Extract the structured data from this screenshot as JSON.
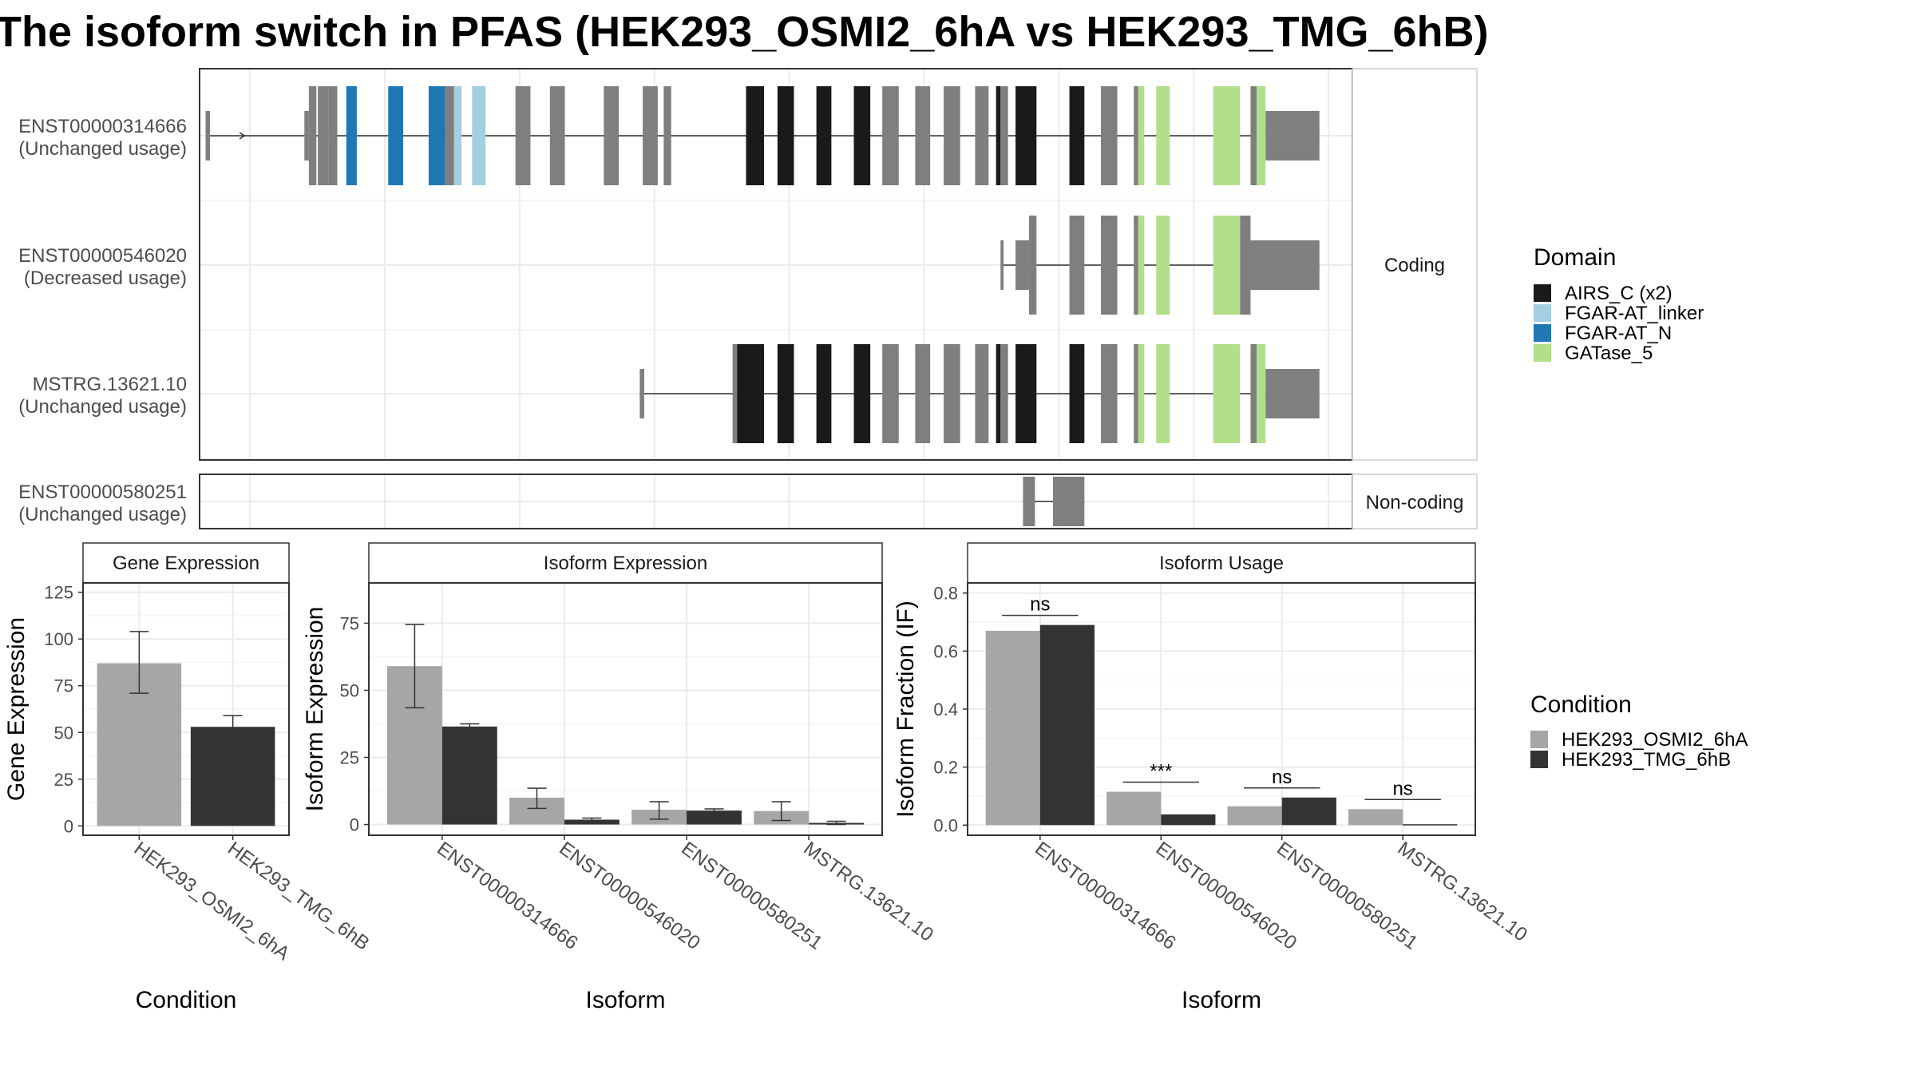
{
  "title": "The isoform switch in PFAS (HEK293_OSMI2_6hA vs HEK293_TMG_6hB)",
  "colors": {
    "cond_a": "#a6a6a6",
    "cond_b": "#333333",
    "exon_default": "#7f7f7f",
    "domain_airs": "#1a1a1a",
    "domain_linker": "#a6cee3",
    "domain_fgar_n": "#1f78b4",
    "domain_gatase": "#b2df8a"
  },
  "chart_data": [
    {
      "type": "gene-structure",
      "facets": [
        "Coding",
        "Non-coding"
      ],
      "transcripts": [
        {
          "id": "ENST00000314666",
          "label_line2": "(Unchanged usage)",
          "facet": "Coding",
          "exons": [
            [
              4,
              7
            ],
            [
              70,
              73
            ],
            [
              73,
              78
            ],
            [
              79,
              86
            ],
            [
              86,
              92
            ],
            [
              98,
              105
            ],
            [
              126,
              136
            ],
            [
              153,
              164
            ],
            [
              164,
              170
            ],
            [
              170,
              175
            ],
            [
              182,
              191
            ],
            [
              211,
              221
            ],
            [
              234,
              244
            ],
            [
              270,
              280
            ],
            [
              296,
              306
            ],
            [
              310,
              315
            ],
            [
              365,
              377
            ],
            [
              386,
              397
            ],
            [
              412,
              422
            ],
            [
              437,
              448
            ],
            [
              456,
              467
            ],
            [
              478,
              488
            ],
            [
              497,
              508
            ],
            [
              518,
              527
            ],
            [
              532,
              535
            ],
            [
              535,
              540
            ],
            [
              545,
              559
            ],
            [
              581,
              591
            ],
            [
              602,
              613
            ],
            [
              624,
              627
            ],
            [
              627,
              631
            ],
            [
              639,
              648
            ],
            [
              677,
              695
            ],
            [
              702,
              706
            ],
            [
              706,
              712
            ],
            [
              712,
              748
            ]
          ],
          "domains": [
            {
              "name": "FGAR-AT_N",
              "range": [
                98,
                105
              ]
            },
            {
              "name": "FGAR-AT_N",
              "range": [
                126,
                136
              ]
            },
            {
              "name": "FGAR-AT_N",
              "range": [
                153,
                164
              ]
            },
            {
              "name": "FGAR-AT_linker",
              "range": [
                170,
                175
              ]
            },
            {
              "name": "FGAR-AT_linker",
              "range": [
                182,
                191
              ]
            },
            {
              "name": "AIRS_C (x2)",
              "range": [
                365,
                377
              ]
            },
            {
              "name": "AIRS_C (x2)",
              "range": [
                386,
                397
              ]
            },
            {
              "name": "AIRS_C (x2)",
              "range": [
                412,
                422
              ]
            },
            {
              "name": "AIRS_C (x2)",
              "range": [
                437,
                448
              ]
            },
            {
              "name": "AIRS_C (x2)",
              "range": [
                532,
                535
              ]
            },
            {
              "name": "AIRS_C (x2)",
              "range": [
                545,
                559
              ]
            },
            {
              "name": "AIRS_C (x2)",
              "range": [
                581,
                591
              ]
            },
            {
              "name": "GATase_5",
              "range": [
                627,
                631
              ]
            },
            {
              "name": "GATase_5",
              "range": [
                639,
                648
              ]
            },
            {
              "name": "GATase_5",
              "range": [
                677,
                695
              ]
            },
            {
              "name": "GATase_5",
              "range": [
                706,
                712
              ]
            }
          ]
        },
        {
          "id": "ENST00000546020",
          "label_line2": "(Decreased usage)",
          "facet": "Coding",
          "exons": [
            [
              535,
              537
            ],
            [
              545,
              554
            ],
            [
              554,
              559
            ],
            [
              581,
              591
            ],
            [
              602,
              613
            ],
            [
              624,
              627
            ],
            [
              627,
              631
            ],
            [
              639,
              648
            ],
            [
              677,
              695
            ],
            [
              695,
              702
            ],
            [
              702,
              748
            ]
          ],
          "domains": [
            {
              "name": "GATase_5",
              "range": [
                627,
                631
              ]
            },
            {
              "name": "GATase_5",
              "range": [
                639,
                648
              ]
            },
            {
              "name": "GATase_5",
              "range": [
                677,
                695
              ]
            }
          ]
        },
        {
          "id": "MSTRG.13621.10",
          "label_line2": "(Unchanged usage)",
          "facet": "Coding",
          "exons": [
            [
              294,
              297
            ],
            [
              356,
              359
            ],
            [
              359,
              365
            ],
            [
              365,
              377
            ],
            [
              386,
              397
            ],
            [
              412,
              422
            ],
            [
              437,
              448
            ],
            [
              456,
              467
            ],
            [
              478,
              488
            ],
            [
              497,
              508
            ],
            [
              518,
              527
            ],
            [
              532,
              535
            ],
            [
              535,
              540
            ],
            [
              545,
              559
            ],
            [
              581,
              591
            ],
            [
              602,
              613
            ],
            [
              624,
              627
            ],
            [
              627,
              631
            ],
            [
              639,
              648
            ],
            [
              677,
              695
            ],
            [
              702,
              706
            ],
            [
              706,
              712
            ],
            [
              712,
              748
            ]
          ],
          "domains": [
            {
              "name": "AIRS_C (x2)",
              "range": [
                359,
                365
              ]
            },
            {
              "name": "AIRS_C (x2)",
              "range": [
                365,
                377
              ]
            },
            {
              "name": "AIRS_C (x2)",
              "range": [
                386,
                397
              ]
            },
            {
              "name": "AIRS_C (x2)",
              "range": [
                412,
                422
              ]
            },
            {
              "name": "AIRS_C (x2)",
              "range": [
                437,
                448
              ]
            },
            {
              "name": "AIRS_C (x2)",
              "range": [
                532,
                535
              ]
            },
            {
              "name": "AIRS_C (x2)",
              "range": [
                545,
                559
              ]
            },
            {
              "name": "AIRS_C (x2)",
              "range": [
                581,
                591
              ]
            },
            {
              "name": "GATase_5",
              "range": [
                627,
                631
              ]
            },
            {
              "name": "GATase_5",
              "range": [
                639,
                648
              ]
            },
            {
              "name": "GATase_5",
              "range": [
                677,
                695
              ]
            },
            {
              "name": "GATase_5",
              "range": [
                706,
                712
              ]
            }
          ]
        },
        {
          "id": "ENST00000580251",
          "label_line2": "(Unchanged usage)",
          "facet": "Non-coding",
          "exons": [
            [
              550,
              558
            ],
            [
              570,
              591
            ]
          ],
          "domains": []
        }
      ],
      "domain_legend": {
        "title": "Domain",
        "entries": [
          "AIRS_C (x2)",
          "FGAR-AT_linker",
          "FGAR-AT_N",
          "GATase_5"
        ]
      }
    },
    {
      "type": "bar",
      "strip": "Gene Expression",
      "xlabel": "Condition",
      "ylabel": "Gene Expression",
      "categories": [
        "HEK293_OSMI2_6hA",
        "HEK293_TMG_6hB"
      ],
      "values": [
        87,
        53
      ],
      "error": [
        [
          71,
          104
        ],
        [
          48,
          59
        ]
      ],
      "yticks": [
        0,
        25,
        50,
        75,
        100,
        125
      ],
      "ylim": [
        -5,
        130
      ]
    },
    {
      "type": "bar",
      "strip": "Isoform Expression",
      "xlabel": "Isoform",
      "ylabel": "Isoform Expression",
      "categories": [
        "ENST00000314666",
        "ENST00000546020",
        "ENST00000580251",
        "MSTRG.13621.10"
      ],
      "series": [
        {
          "name": "HEK293_OSMI2_6hA",
          "values": [
            59,
            10,
            5.5,
            5
          ],
          "error": [
            [
              43.5,
              74.5
            ],
            [
              6,
              13.5
            ],
            [
              2,
              8.5
            ],
            [
              1.5,
              8.5
            ]
          ]
        },
        {
          "name": "HEK293_TMG_6hB",
          "values": [
            36.5,
            1.8,
            5.2,
            0.6
          ],
          "error": [
            [
              35,
              37.5
            ],
            [
              1.2,
              2.4
            ],
            [
              4.6,
              5.8
            ],
            [
              0,
              1.2
            ]
          ]
        }
      ],
      "yticks": [
        0,
        25,
        50,
        75
      ],
      "ylim": [
        -4,
        90
      ]
    },
    {
      "type": "bar",
      "strip": "Isoform Usage",
      "xlabel": "Isoform",
      "ylabel": "Isoform Fraction (IF)",
      "categories": [
        "ENST00000314666",
        "ENST00000546020",
        "ENST00000580251",
        "MSTRG.13621.10"
      ],
      "series": [
        {
          "name": "HEK293_OSMI2_6hA",
          "values": [
            0.67,
            0.115,
            0.065,
            0.055
          ]
        },
        {
          "name": "HEK293_TMG_6hB",
          "values": [
            0.69,
            0.037,
            0.095,
            0.003
          ]
        }
      ],
      "significance": [
        "ns",
        "***",
        "ns",
        "ns"
      ],
      "yticks": [
        0.0,
        0.2,
        0.4,
        0.6,
        0.8
      ],
      "ylim": [
        -0.035,
        0.835
      ]
    }
  ],
  "condition_legend": {
    "title": "Condition",
    "entries": [
      "HEK293_OSMI2_6hA",
      "HEK293_TMG_6hB"
    ]
  }
}
